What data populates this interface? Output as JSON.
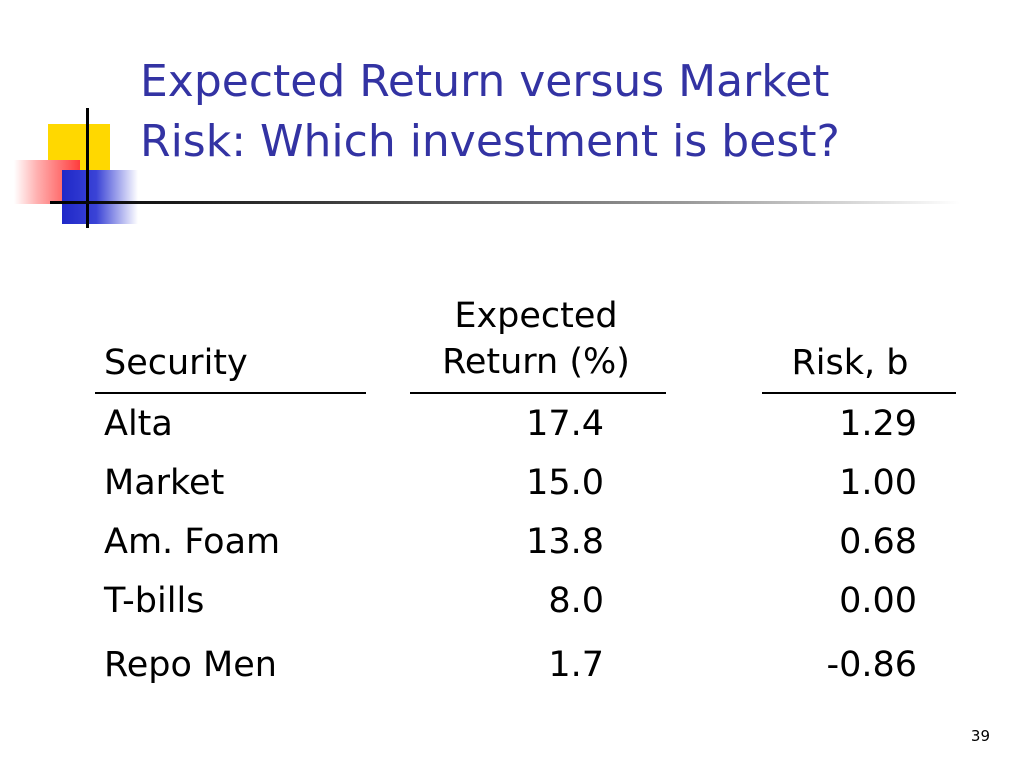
{
  "slide": {
    "title_line1": "Expected Return versus Market",
    "title_line2": "Risk: Which investment is best?",
    "title_color": "#3333a3",
    "page_number": "39"
  },
  "table": {
    "headers": {
      "security": "Security",
      "return_line1": "Expected",
      "return_line2": "Return (%)",
      "risk": "Risk, b"
    },
    "rows": [
      {
        "security": "Alta",
        "expected_return": "17.4",
        "risk": "1.29"
      },
      {
        "security": "Market",
        "expected_return": "15.0",
        "risk": "1.00"
      },
      {
        "security": "Am. Foam",
        "expected_return": "13.8",
        "risk": "0.68"
      },
      {
        "security": "T-bills",
        "expected_return": "8.0",
        "risk": "0.00"
      },
      {
        "security": "Repo Men",
        "expected_return": "1.7",
        "risk": "-0.86"
      }
    ]
  },
  "decoration": {
    "colors": [
      "#ffd800",
      "#ff3c3c",
      "#1f28c8",
      "#000000"
    ]
  }
}
